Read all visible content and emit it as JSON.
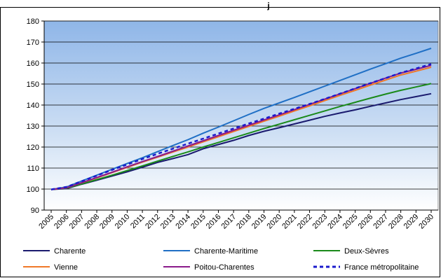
{
  "chart_data": {
    "type": "line",
    "title": "j",
    "xlabel": "",
    "ylabel": "",
    "x": [
      "2005",
      "2006",
      "2007",
      "2008",
      "2009",
      "2010",
      "2011",
      "2012",
      "2013",
      "2014",
      "2015",
      "2016",
      "2017",
      "2018",
      "2019",
      "2020",
      "2021",
      "2022",
      "2023",
      "2024",
      "2025",
      "2026",
      "2027",
      "2028",
      "2029",
      "2030"
    ],
    "ylim": [
      90,
      180
    ],
    "yticks": [
      90,
      100,
      110,
      120,
      130,
      140,
      150,
      160,
      170,
      180
    ],
    "grid": true,
    "legend_position": "bottom",
    "series": [
      {
        "name": "Charente",
        "color": "#1a1a6e",
        "dash": false,
        "values": [
          99.8,
          100.2,
          102.3,
          104.2,
          106.2,
          108.2,
          110.4,
          112.7,
          114.5,
          116.4,
          119.2,
          121.2,
          123.2,
          125.5,
          127.5,
          129.2,
          131.0,
          132.8,
          134.6,
          136.2,
          137.7,
          139.4,
          141.0,
          142.6,
          144.0,
          145.4
        ]
      },
      {
        "name": "Charente-Maritime",
        "color": "#1f6fc5",
        "dash": false,
        "values": [
          99.8,
          101.0,
          103.8,
          106.6,
          109.4,
          112.2,
          114.9,
          117.8,
          120.7,
          123.5,
          126.6,
          129.5,
          132.5,
          135.5,
          138.4,
          141.0,
          143.6,
          146.3,
          149.0,
          151.7,
          154.4,
          157.1,
          159.7,
          162.3,
          164.6,
          167.0
        ]
      },
      {
        "name": "Deux-Sèvres",
        "color": "#1a8a1a",
        "dash": false,
        "values": [
          99.8,
          100.4,
          102.4,
          104.5,
          106.6,
          108.8,
          111.0,
          113.3,
          115.5,
          117.7,
          120.0,
          122.2,
          124.4,
          126.6,
          128.8,
          130.9,
          133.0,
          135.1,
          137.2,
          139.3,
          141.3,
          143.3,
          145.2,
          147.0,
          148.6,
          150.2
        ]
      },
      {
        "name": "Vienne",
        "color": "#f07828",
        "dash": false,
        "values": [
          99.8,
          100.6,
          103.0,
          105.3,
          107.8,
          110.3,
          112.8,
          115.2,
          117.6,
          120.0,
          122.5,
          124.9,
          127.4,
          129.8,
          132.3,
          134.7,
          137.2,
          139.6,
          142.1,
          144.6,
          147.0,
          149.5,
          151.9,
          154.3,
          156.1,
          158.0
        ]
      },
      {
        "name": "Poitou-Charentes",
        "color": "#8a1a8a",
        "dash": false,
        "values": [
          99.8,
          100.6,
          103.0,
          105.5,
          108.0,
          110.6,
          113.1,
          115.5,
          118.0,
          120.5,
          123.0,
          125.5,
          128.0,
          130.4,
          132.9,
          135.3,
          137.8,
          140.3,
          142.8,
          145.3,
          147.8,
          150.3,
          152.8,
          155.2,
          157.0,
          158.9
        ]
      },
      {
        "name": "France métropolitaine",
        "color": "#1a1acc",
        "dash": true,
        "values": [
          99.8,
          101.0,
          103.7,
          106.4,
          109.1,
          111.7,
          114.3,
          116.8,
          119.2,
          121.6,
          124.0,
          126.4,
          128.8,
          131.2,
          133.5,
          135.9,
          138.2,
          140.5,
          142.9,
          145.4,
          147.9,
          150.4,
          152.8,
          155.3,
          157.4,
          159.5
        ]
      }
    ]
  }
}
